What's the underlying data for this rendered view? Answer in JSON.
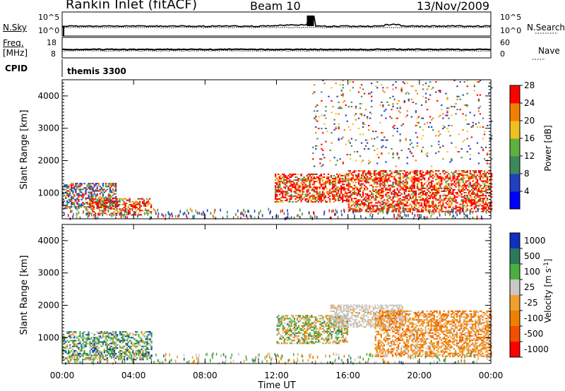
{
  "header": {
    "station": "Rankin Inlet (fitACF)",
    "beam": "Beam 10",
    "date": "13/Nov/2009"
  },
  "status_panels": {
    "nsky_label": "N.Sky",
    "nsearch_label": "N.Search",
    "nsky_ticks": [
      "10^5",
      "10^0"
    ],
    "freq_label_1": "Freq.",
    "freq_label_2": "[MHz]",
    "freq_ticks": [
      "18",
      "8"
    ],
    "nave_label": "Nave",
    "nave_ticks": [
      "60",
      "0"
    ],
    "cpid_label": "CPID",
    "cpid_value": "themis 3300"
  },
  "chart_data": [
    {
      "type": "heatmap",
      "title": "",
      "xlabel": "",
      "ylabel": "Slant Range [km]",
      "x_ticks": [
        "00:00",
        "04:00",
        "08:00",
        "12:00",
        "16:00",
        "20:00",
        "00:00"
      ],
      "y_ticks": [
        "1000",
        "2000",
        "3000",
        "4000"
      ],
      "ylim": [
        200,
        4500
      ],
      "colorbar": {
        "label": "Power [dB]",
        "ticks": [
          "4",
          "8",
          "12",
          "16",
          "20",
          "24",
          "28"
        ],
        "colors": [
          "#0000ff",
          "#2040c0",
          "#3a8a5a",
          "#60b040",
          "#f0c020",
          "#f08000",
          "#ff0000"
        ]
      },
      "regions": [
        {
          "t0": 0.0,
          "t1": 3.0,
          "r0": 500,
          "r1": 1300,
          "level": "low-mid"
        },
        {
          "t0": 1.5,
          "t1": 5.0,
          "r0": 300,
          "r1": 800,
          "level": "high"
        },
        {
          "t0": 11.9,
          "t1": 16.0,
          "r0": 700,
          "r1": 1600,
          "level": "high"
        },
        {
          "t0": 16.0,
          "t1": 24.0,
          "r0": 400,
          "r1": 1700,
          "level": "high"
        },
        {
          "t0": 14.0,
          "t1": 24.0,
          "r0": 1800,
          "r1": 4500,
          "level": "sparse"
        }
      ]
    },
    {
      "type": "heatmap",
      "title": "",
      "xlabel": "Time UT",
      "ylabel": "Slant Range [km]",
      "x_ticks": [
        "00:00",
        "04:00",
        "08:00",
        "12:00",
        "16:00",
        "20:00",
        "00:00"
      ],
      "y_ticks": [
        "1000",
        "2000",
        "3000",
        "4000"
      ],
      "ylim": [
        200,
        4500
      ],
      "colorbar": {
        "label": "Velocity [m s^-1]",
        "ticks": [
          "1000",
          "500",
          "100",
          "25",
          "-25",
          "-100",
          "-500",
          "-1000"
        ],
        "colors": [
          "#1030c0",
          "#2a7a5a",
          "#4ab040",
          "#c8c8c8",
          "#f0a030",
          "#f08000",
          "#f05000",
          "#ff0000"
        ]
      },
      "regions": [
        {
          "t0": 0.0,
          "t1": 5.0,
          "r0": 300,
          "r1": 1200,
          "level": "green"
        },
        {
          "t0": 12.0,
          "t1": 16.0,
          "r0": 800,
          "r1": 1700,
          "level": "mixed"
        },
        {
          "t0": 15.0,
          "t1": 19.0,
          "r0": 1300,
          "r1": 2000,
          "level": "grey"
        },
        {
          "t0": 17.5,
          "t1": 24.0,
          "r0": 400,
          "r1": 1800,
          "level": "orange"
        }
      ]
    }
  ]
}
